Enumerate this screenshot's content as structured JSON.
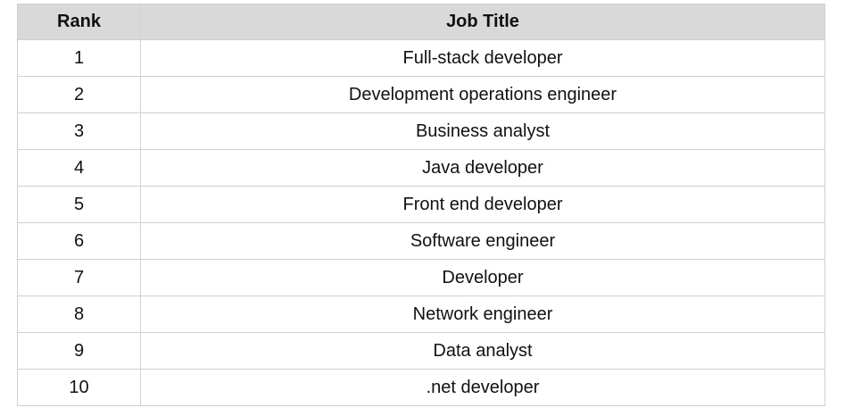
{
  "table": {
    "headers": {
      "rank": "Rank",
      "job_title": "Job Title"
    },
    "rows": [
      {
        "rank": "1",
        "title": "Full-stack developer"
      },
      {
        "rank": "2",
        "title": "Development operations engineer"
      },
      {
        "rank": "3",
        "title": "Business analyst"
      },
      {
        "rank": "4",
        "title": "Java developer"
      },
      {
        "rank": "5",
        "title": "Front end developer"
      },
      {
        "rank": "6",
        "title": "Software engineer"
      },
      {
        "rank": "7",
        "title": "Developer"
      },
      {
        "rank": "8",
        "title": "Network engineer"
      },
      {
        "rank": "9",
        "title": "Data analyst"
      },
      {
        "rank": "10",
        "title": ".net developer"
      }
    ]
  }
}
